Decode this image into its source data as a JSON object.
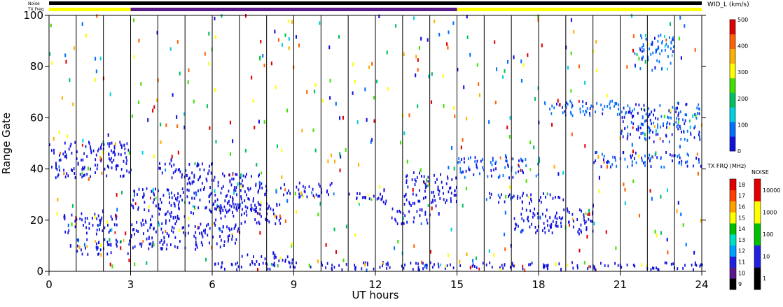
{
  "chart_data": {
    "type": "heatmap",
    "xlabel": "UT hours",
    "ylabel": "Range Gate",
    "xlim": [
      0,
      24
    ],
    "ylim": [
      0,
      100
    ],
    "xticks": [
      "0",
      "3",
      "6",
      "9",
      "12",
      "15",
      "18",
      "21",
      "24"
    ],
    "yticks": [
      "0",
      "20",
      "40",
      "60",
      "80",
      "100"
    ],
    "top_bars": {
      "noise_label": "Noise",
      "txfreq_label": "TX Freq",
      "txfreq_segments": [
        {
          "start": 0,
          "end": 3,
          "color": "#ffff00"
        },
        {
          "start": 3,
          "end": 15,
          "color": "#5a1a8a"
        },
        {
          "start": 15,
          "end": 24,
          "color": "#ffff00"
        }
      ]
    },
    "colorbars": [
      {
        "title": "WID_L (km/s)",
        "ticks": [
          "0",
          "100",
          "200",
          "300",
          "400",
          "500"
        ],
        "range": [
          0,
          500
        ],
        "colors": [
          "#1010e0",
          "#0070ff",
          "#00d0e0",
          "#00c060",
          "#40e000",
          "#ffff00",
          "#ffb000",
          "#ff6000",
          "#e00000"
        ]
      },
      {
        "title": "TX FRQ (MHz)",
        "ticks": [
          "9",
          "10",
          "11",
          "12",
          "13",
          "14",
          "15",
          "16",
          "17",
          "18"
        ],
        "colors": [
          "#000000",
          "#5a1a8a",
          "#2020e0",
          "#00a0ff",
          "#00e0c0",
          "#00c000",
          "#ffff00",
          "#ffa000",
          "#ff4000",
          "#e00000"
        ]
      },
      {
        "title": "NOISE",
        "ticks": [
          "1",
          "10",
          "100",
          "1000",
          "10000"
        ],
        "colors": [
          "#000000",
          "#2020e0",
          "#00c000",
          "#ffff00",
          "#e00000"
        ]
      }
    ],
    "echo_regions": [
      {
        "x": [
          0,
          3
        ],
        "y": [
          36,
          50
        ],
        "value": 20
      },
      {
        "x": [
          0.5,
          2.5
        ],
        "y": [
          14,
          22
        ],
        "value": 30
      },
      {
        "x": [
          1,
          3
        ],
        "y": [
          6,
          12
        ],
        "value": 25
      },
      {
        "x": [
          3,
          5
        ],
        "y": [
          18,
          32
        ],
        "value": 20
      },
      {
        "x": [
          3,
          7
        ],
        "y": [
          8,
          18
        ],
        "value": 25
      },
      {
        "x": [
          4,
          6
        ],
        "y": [
          36,
          42
        ],
        "value": 20
      },
      {
        "x": [
          5,
          8
        ],
        "y": [
          22,
          38
        ],
        "value": 30
      },
      {
        "x": [
          6,
          8.5
        ],
        "y": [
          18,
          26
        ],
        "value": 20
      },
      {
        "x": [
          7,
          9
        ],
        "y": [
          2,
          6
        ],
        "value": 15
      },
      {
        "x": [
          8.5,
          10.5
        ],
        "y": [
          28,
          34
        ],
        "value": 40
      },
      {
        "x": [
          11,
          12.5
        ],
        "y": [
          25,
          30
        ],
        "value": 30
      },
      {
        "x": [
          12.5,
          14
        ],
        "y": [
          18,
          24
        ],
        "value": 20
      },
      {
        "x": [
          13,
          15
        ],
        "y": [
          25,
          38
        ],
        "value": 30
      },
      {
        "x": [
          6,
          24
        ],
        "y": [
          0,
          3
        ],
        "value": 15
      },
      {
        "x": [
          15,
          18
        ],
        "y": [
          36,
          44
        ],
        "value": 60
      },
      {
        "x": [
          16,
          19
        ],
        "y": [
          26,
          30
        ],
        "value": 40
      },
      {
        "x": [
          17,
          20
        ],
        "y": [
          14,
          24
        ],
        "value": 30
      },
      {
        "x": [
          18,
          21
        ],
        "y": [
          60,
          66
        ],
        "value": 70
      },
      {
        "x": [
          21,
          24
        ],
        "y": [
          50,
          66
        ],
        "value": 50
      },
      {
        "x": [
          20,
          24
        ],
        "y": [
          40,
          46
        ],
        "value": 60
      },
      {
        "x": [
          21.5,
          23
        ],
        "y": [
          78,
          92
        ],
        "value": 80
      }
    ]
  }
}
